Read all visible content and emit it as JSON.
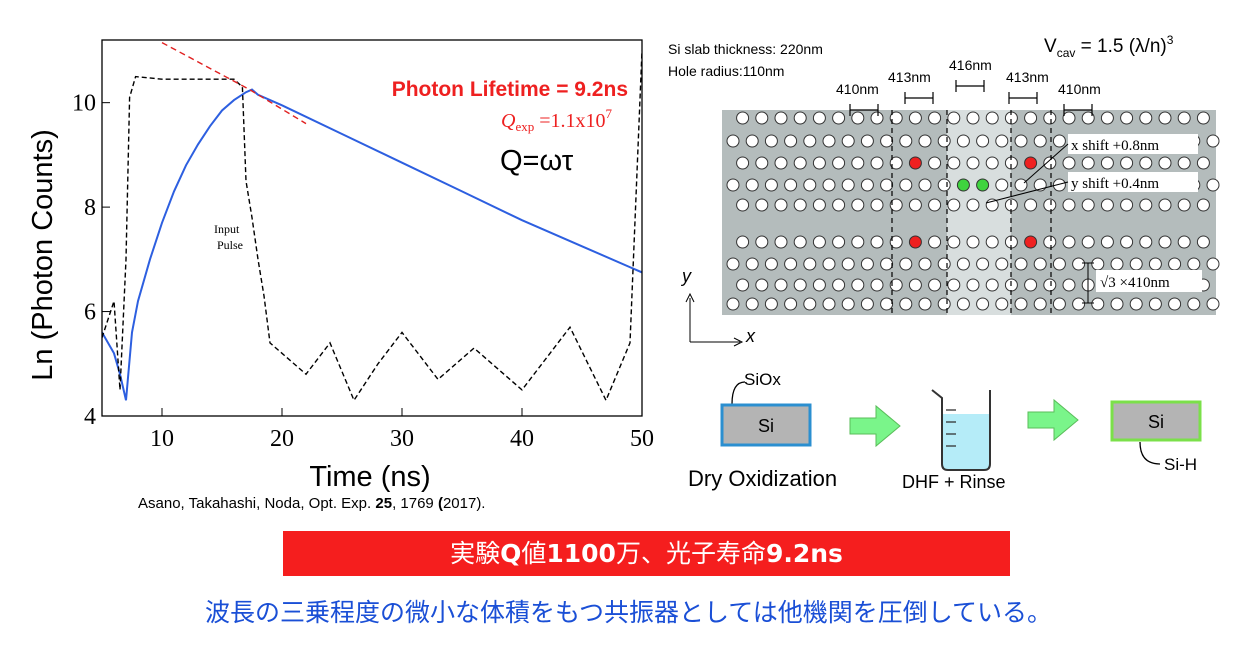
{
  "chart_data": {
    "type": "line",
    "xlabel": "Time (ns)",
    "ylabel": "Ln (Photon Counts)",
    "xlim": [
      5,
      50
    ],
    "ylim": [
      4,
      11.2
    ],
    "x_ticks": [
      10,
      20,
      30,
      40,
      50
    ],
    "y_ticks": [
      4,
      6,
      8,
      10
    ],
    "grid": false,
    "annotations": {
      "lifetime": "Photon Lifetime = 9.2ns",
      "qexp_symbol": "Q",
      "qexp_sub": "exp",
      "qexp_value": " =1.1x10",
      "qexp_exp": "7",
      "q_formula": "Q=ωτ",
      "input_pulse_1": "Input",
      "input_pulse_2": "Pulse"
    },
    "series": [
      {
        "label": "emission",
        "color": "#2d5fe0",
        "style": "solid",
        "x": [
          5,
          6,
          6.5,
          7,
          7.5,
          8,
          9,
          10,
          11,
          12,
          13,
          14,
          15,
          16,
          17,
          17.5,
          18,
          20,
          25,
          30,
          35,
          40,
          45,
          50
        ],
        "y": [
          5.6,
          5.2,
          4.8,
          4.3,
          5.6,
          6.2,
          7.0,
          7.7,
          8.3,
          8.8,
          9.2,
          9.55,
          9.85,
          10.05,
          10.2,
          10.25,
          10.15,
          9.95,
          9.4,
          8.85,
          8.3,
          7.75,
          7.25,
          6.75
        ]
      },
      {
        "label": "input pulse",
        "color": "#000000",
        "style": "dashed",
        "x": [
          5,
          6,
          6.5,
          7,
          7.3,
          7.8,
          10,
          12,
          14,
          16,
          16.7,
          17,
          17.5,
          18,
          18.5,
          19,
          20,
          22,
          24,
          26,
          28,
          30,
          33,
          36,
          40,
          44,
          47,
          49,
          50
        ],
        "y": [
          5.5,
          6.2,
          4.5,
          7.0,
          10.1,
          10.5,
          10.45,
          10.45,
          10.45,
          10.45,
          10.3,
          8.5,
          7.8,
          7.0,
          6.3,
          5.4,
          5.2,
          4.8,
          5.4,
          4.3,
          5.0,
          5.6,
          4.7,
          5.3,
          4.5,
          5.7,
          4.3,
          5.4,
          11.0
        ]
      },
      {
        "label": "fit",
        "color": "#e02020",
        "style": "dashed",
        "x": [
          10,
          17.3,
          22
        ],
        "y": [
          11.15,
          10.25,
          9.6
        ]
      }
    ]
  },
  "citation": {
    "text_before": "Asano, Takahashi, Noda, Opt. Exp. ",
    "volume": "25",
    "text_after": ", 1769 ",
    "paren_open": "(",
    "year": "2017",
    "paren_close": ").",
    "full": "Asano, Takahashi, Noda, Opt. Exp. 25, 1769 (2017)."
  },
  "cavity": {
    "slab_thickness": "Si slab thickness: 220nm",
    "hole_radius": "Hole radius:110nm",
    "vcav_prefix": "V",
    "vcav_sub": "cav",
    "vcav_expr": " = 1.5 (λ/n)",
    "vcav_exp": "3",
    "spacings": [
      "410nm",
      "413nm",
      "416nm",
      "413nm",
      "410nm"
    ],
    "x_shift": "x shift +0.8nm",
    "y_shift": "y shift +0.4nm",
    "row_spacing_sqrt": "√3",
    "row_spacing_rest": " ×410nm",
    "axis_x": "x",
    "axis_y": "y",
    "colors": {
      "slab": "#b4bcbc",
      "center_band": "#d8dede",
      "red_hole": "#ef2020",
      "green_hole": "#3fd33f"
    }
  },
  "process": {
    "siox": "SiOx",
    "si_left": "Si",
    "si_right": "Si",
    "si_h": "Si-H",
    "step1": "Dry Oxidization",
    "step2": "DHF + Rinse",
    "colors": {
      "box": "#b4b4b4",
      "left_border": "#2b8fd0",
      "right_border": "#7be04a",
      "arrow": "#7af58a",
      "liquid": "#b5ecf8"
    }
  },
  "banner": {
    "p1": "実験",
    "p2": "Q",
    "p3": "値",
    "p4": "1100",
    "p5": "万、光子寿命",
    "p6": "9.2ns",
    "full": "実験Q値1100万、光子寿命9.2ns"
  },
  "conclusion": "波長の三乗程度の微小な体積をもつ共振器としては他機関を圧倒している。"
}
